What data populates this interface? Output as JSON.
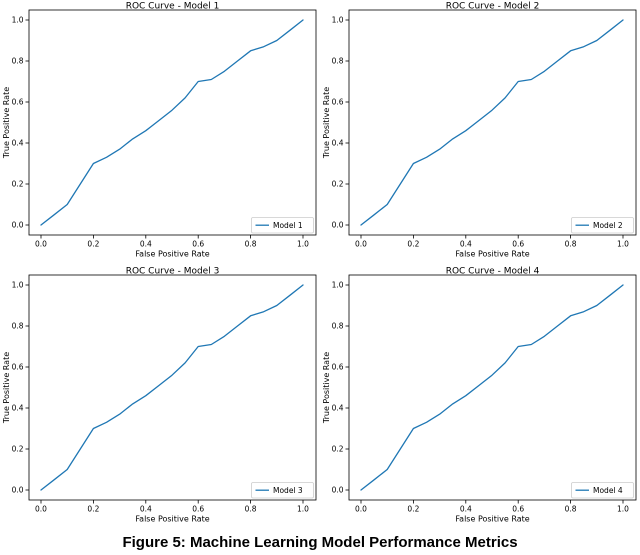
{
  "figure": {
    "caption": "Figure 5: Machine Learning Model Performance Metrics"
  },
  "style": {
    "background": "#ffffff",
    "line_color": "#1f77b4",
    "axis_color": "#000000",
    "text_color": "#000000",
    "legend_border_color": "#cccccc",
    "legend_fill": "#ffffff"
  },
  "chart_data": [
    {
      "type": "line",
      "title": "ROC Curve - Model 1",
      "xlabel": "False Positive Rate",
      "ylabel": "True Positive Rate",
      "xlim": [
        0.0,
        1.0
      ],
      "ylim": [
        0.0,
        1.0
      ],
      "xticks": [
        "0.0",
        "0.2",
        "0.4",
        "0.6",
        "0.8",
        "1.0"
      ],
      "yticks": [
        "0.0",
        "0.2",
        "0.4",
        "0.6",
        "0.8",
        "1.0"
      ],
      "grid": false,
      "legend_position": "lower right",
      "x": [
        0.0,
        0.05,
        0.1,
        0.15,
        0.2,
        0.25,
        0.3,
        0.35,
        0.4,
        0.45,
        0.5,
        0.55,
        0.6,
        0.65,
        0.7,
        0.75,
        0.8,
        0.85,
        0.9,
        0.95,
        1.0
      ],
      "series": [
        {
          "name": "Model 1",
          "values": [
            0.0,
            0.05,
            0.1,
            0.2,
            0.3,
            0.33,
            0.37,
            0.42,
            0.46,
            0.51,
            0.56,
            0.62,
            0.7,
            0.71,
            0.75,
            0.8,
            0.85,
            0.87,
            0.9,
            0.95,
            1.0
          ]
        }
      ]
    },
    {
      "type": "line",
      "title": "ROC Curve - Model 2",
      "xlabel": "False Positive Rate",
      "ylabel": "True Positive Rate",
      "xlim": [
        0.0,
        1.0
      ],
      "ylim": [
        0.0,
        1.0
      ],
      "xticks": [
        "0.0",
        "0.2",
        "0.4",
        "0.6",
        "0.8",
        "1.0"
      ],
      "yticks": [
        "0.0",
        "0.2",
        "0.4",
        "0.6",
        "0.8",
        "1.0"
      ],
      "grid": false,
      "legend_position": "lower right",
      "x": [
        0.0,
        0.05,
        0.1,
        0.15,
        0.2,
        0.25,
        0.3,
        0.35,
        0.4,
        0.45,
        0.5,
        0.55,
        0.6,
        0.65,
        0.7,
        0.75,
        0.8,
        0.85,
        0.9,
        0.95,
        1.0
      ],
      "series": [
        {
          "name": "Model 2",
          "values": [
            0.0,
            0.05,
            0.1,
            0.2,
            0.3,
            0.33,
            0.37,
            0.42,
            0.46,
            0.51,
            0.56,
            0.62,
            0.7,
            0.71,
            0.75,
            0.8,
            0.85,
            0.87,
            0.9,
            0.95,
            1.0
          ]
        }
      ]
    },
    {
      "type": "line",
      "title": "ROC Curve - Model 3",
      "xlabel": "False Positive Rate",
      "ylabel": "True Positive Rate",
      "xlim": [
        0.0,
        1.0
      ],
      "ylim": [
        0.0,
        1.0
      ],
      "xticks": [
        "0.0",
        "0.2",
        "0.4",
        "0.6",
        "0.8",
        "1.0"
      ],
      "yticks": [
        "0.0",
        "0.2",
        "0.4",
        "0.6",
        "0.8",
        "1.0"
      ],
      "grid": false,
      "legend_position": "lower right",
      "x": [
        0.0,
        0.05,
        0.1,
        0.15,
        0.2,
        0.25,
        0.3,
        0.35,
        0.4,
        0.45,
        0.5,
        0.55,
        0.6,
        0.65,
        0.7,
        0.75,
        0.8,
        0.85,
        0.9,
        0.95,
        1.0
      ],
      "series": [
        {
          "name": "Model 3",
          "values": [
            0.0,
            0.05,
            0.1,
            0.2,
            0.3,
            0.33,
            0.37,
            0.42,
            0.46,
            0.51,
            0.56,
            0.62,
            0.7,
            0.71,
            0.75,
            0.8,
            0.85,
            0.87,
            0.9,
            0.95,
            1.0
          ]
        }
      ]
    },
    {
      "type": "line",
      "title": "ROC Curve - Model 4",
      "xlabel": "False Positive Rate",
      "ylabel": "True Positive Rate",
      "xlim": [
        0.0,
        1.0
      ],
      "ylim": [
        0.0,
        1.0
      ],
      "xticks": [
        "0.0",
        "0.2",
        "0.4",
        "0.6",
        "0.8",
        "1.0"
      ],
      "yticks": [
        "0.0",
        "0.2",
        "0.4",
        "0.6",
        "0.8",
        "1.0"
      ],
      "grid": false,
      "legend_position": "lower right",
      "x": [
        0.0,
        0.05,
        0.1,
        0.15,
        0.2,
        0.25,
        0.3,
        0.35,
        0.4,
        0.45,
        0.5,
        0.55,
        0.6,
        0.65,
        0.7,
        0.75,
        0.8,
        0.85,
        0.9,
        0.95,
        1.0
      ],
      "series": [
        {
          "name": "Model 4",
          "values": [
            0.0,
            0.05,
            0.1,
            0.2,
            0.3,
            0.33,
            0.37,
            0.42,
            0.46,
            0.51,
            0.56,
            0.62,
            0.7,
            0.71,
            0.75,
            0.8,
            0.85,
            0.87,
            0.9,
            0.95,
            1.0
          ]
        }
      ]
    }
  ]
}
